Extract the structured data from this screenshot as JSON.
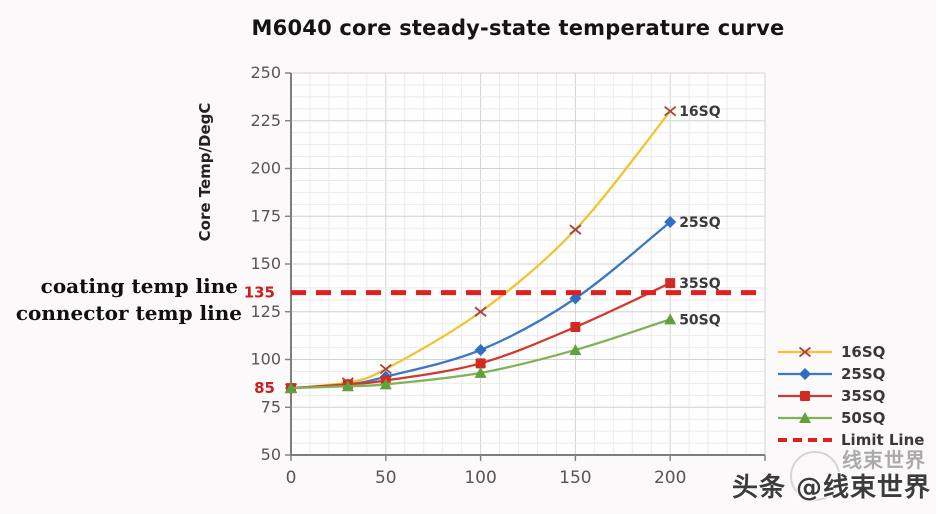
{
  "title": "M6040 core steady-state temperature curve",
  "annotations": {
    "line1": "coating temp line",
    "line2": "connector temp line"
  },
  "watermark": {
    "main": "头条 @线束世界",
    "ghost": "线束世界"
  },
  "chart_data": {
    "type": "line",
    "title": "M6040 core steady-state temperature curve",
    "xlabel": "",
    "ylabel": "Core Temp/DegC",
    "xlim": [
      0,
      250
    ],
    "ylim": [
      50,
      250
    ],
    "x_ticks": [
      0,
      50,
      100,
      150,
      200
    ],
    "y_ticks": [
      50,
      75,
      100,
      125,
      150,
      175,
      200,
      225,
      250
    ],
    "highlight_y_labels": [
      {
        "value": 135,
        "label": "135",
        "color": "#CC2020"
      },
      {
        "value": 85,
        "label": "85",
        "color": "#CC2020"
      }
    ],
    "grid": {
      "x_major": 50,
      "x_minor_divisions": 5,
      "y_major": 25,
      "y_minor_divisions": 4
    },
    "legend_position": "right",
    "x": [
      0,
      30,
      50,
      100,
      150,
      200
    ],
    "series": [
      {
        "name": "16SQ",
        "values": [
          85,
          88,
          95,
          125,
          168,
          230
        ],
        "line_color": "#F1C431",
        "marker": "x",
        "marker_color": "#A8433C"
      },
      {
        "name": "25SQ",
        "values": [
          85,
          87,
          91,
          105,
          132,
          172
        ],
        "line_color": "#3A77C4",
        "marker": "diamond",
        "marker_color": "#2F6FC1"
      },
      {
        "name": "35SQ",
        "values": [
          85,
          87,
          89,
          98,
          117,
          140
        ],
        "line_color": "#CF3A30",
        "marker": "square",
        "marker_color": "#D02A22"
      },
      {
        "name": "50SQ",
        "values": [
          85,
          86,
          87,
          93,
          105,
          121
        ],
        "line_color": "#7FB355",
        "marker": "triangle",
        "marker_color": "#61A13B"
      }
    ],
    "limit_line": {
      "label": "Limit Line",
      "value": 135,
      "color": "#E01F1F"
    }
  }
}
